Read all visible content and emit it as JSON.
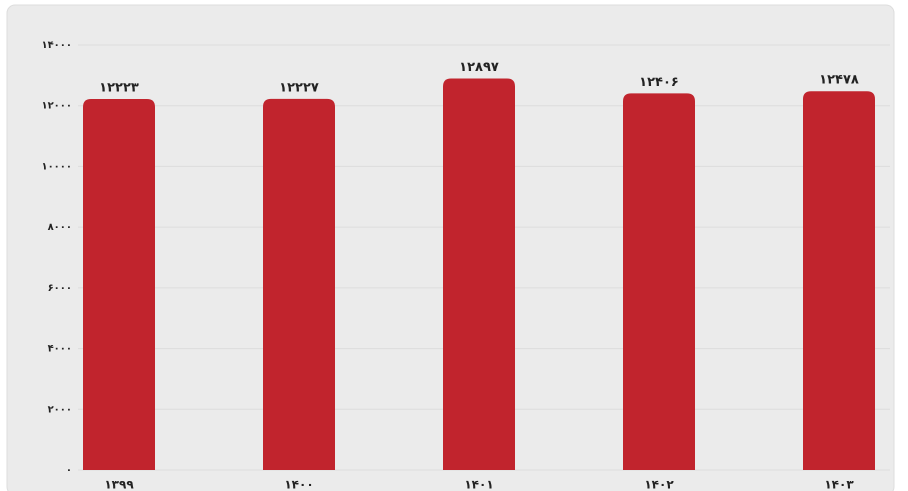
{
  "chart_data": {
    "type": "bar",
    "categories": [
      "۱۳۹۹",
      "۱۴۰۰",
      "۱۴۰۱",
      "۱۴۰۲",
      "۱۴۰۳"
    ],
    "values": [
      12223,
      12227,
      12897,
      12406,
      12478
    ],
    "value_labels": [
      "۱۲۲۲۳",
      "۱۲۲۲۷",
      "۱۲۸۹۷",
      "۱۲۴۰۶",
      "۱۲۴۷۸"
    ],
    "color": "#c1242d",
    "ylim": [
      0,
      14000
    ],
    "yticks": [
      {
        "value": 0,
        "label": "۰"
      },
      {
        "value": 2000,
        "label": "۲۰۰۰"
      },
      {
        "value": 4000,
        "label": "۴۰۰۰"
      },
      {
        "value": 6000,
        "label": "۶۰۰۰"
      },
      {
        "value": 8000,
        "label": "۸۰۰۰"
      },
      {
        "value": 10000,
        "label": "۱۰۰۰۰"
      },
      {
        "value": 12000,
        "label": "۱۲۰۰۰"
      },
      {
        "value": 14000,
        "label": "۱۴۰۰۰"
      }
    ],
    "grid": true
  }
}
